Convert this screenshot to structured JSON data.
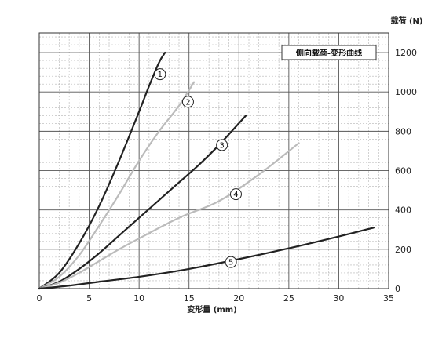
{
  "chart_data": {
    "type": "line",
    "title": "侧向载荷-变形曲线",
    "xlabel": "变形量 (mm)",
    "ylabel": "载荷 (N)",
    "xlim": [
      0,
      35
    ],
    "ylim": [
      0,
      1300
    ],
    "x_ticks": [
      0,
      5,
      10,
      15,
      20,
      25,
      30,
      35
    ],
    "y_ticks": [
      0,
      200,
      400,
      600,
      800,
      1000,
      1200
    ],
    "grid": true,
    "legend_position": "top-right",
    "series": [
      {
        "name": "1",
        "color": "#222222",
        "marker_at": [
          12.1,
          1090
        ],
        "points": [
          [
            0,
            0
          ],
          [
            2,
            80
          ],
          [
            4,
            230
          ],
          [
            6,
            420
          ],
          [
            8,
            650
          ],
          [
            10,
            900
          ],
          [
            11,
            1030
          ],
          [
            12,
            1150
          ],
          [
            12.6,
            1200
          ]
        ]
      },
      {
        "name": "2",
        "color": "#bbbbbb",
        "marker_at": [
          14.9,
          950
        ],
        "points": [
          [
            0,
            0
          ],
          [
            2,
            60
          ],
          [
            4,
            170
          ],
          [
            6,
            320
          ],
          [
            8,
            480
          ],
          [
            10,
            650
          ],
          [
            12,
            800
          ],
          [
            14,
            930
          ],
          [
            15.5,
            1050
          ]
        ]
      },
      {
        "name": "3",
        "color": "#222222",
        "marker_at": [
          18.3,
          730
        ],
        "points": [
          [
            0,
            0
          ],
          [
            2,
            35
          ],
          [
            4,
            100
          ],
          [
            6,
            180
          ],
          [
            8,
            270
          ],
          [
            10,
            360
          ],
          [
            12,
            450
          ],
          [
            14,
            540
          ],
          [
            16,
            630
          ],
          [
            18,
            730
          ],
          [
            20.7,
            880
          ]
        ]
      },
      {
        "name": "4",
        "color": "#bbbbbb",
        "marker_at": [
          19.7,
          480
        ],
        "points": [
          [
            0,
            0
          ],
          [
            2,
            30
          ],
          [
            4,
            80
          ],
          [
            6,
            140
          ],
          [
            8,
            200
          ],
          [
            10,
            255
          ],
          [
            14,
            360
          ],
          [
            18,
            445
          ],
          [
            22,
            580
          ],
          [
            26,
            740
          ]
        ]
      },
      {
        "name": "5",
        "color": "#222222",
        "marker_at": [
          19.2,
          135
        ],
        "points": [
          [
            0,
            0
          ],
          [
            3,
            15
          ],
          [
            6,
            35
          ],
          [
            10,
            60
          ],
          [
            15,
            100
          ],
          [
            20,
            150
          ],
          [
            25,
            205
          ],
          [
            30,
            265
          ],
          [
            33.5,
            310
          ]
        ]
      }
    ]
  }
}
